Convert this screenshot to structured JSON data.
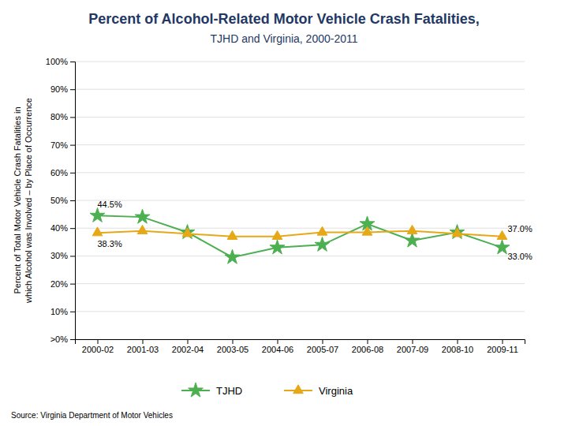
{
  "chart_data": {
    "type": "line",
    "title": "Percent of Alcohol-Related Motor Vehicle Crash Fatalities,",
    "subtitle": "TJHD and Virginia, 2000-2011",
    "y_label": "Percent of Total Motor Vehicle Crash Fatalities in\nwhich Alcohol was Involved – by Place of Occurrence",
    "source": "Source: Virginia Department of Motor Vehicles",
    "categories": [
      "2000-02",
      "2001-03",
      "2002-04",
      "2003-05",
      "2004-06",
      "2005-07",
      "2006-08",
      "2007-09",
      "2008-10",
      "2009-11"
    ],
    "series": [
      {
        "name": "TJHD",
        "color": "#4CAF50",
        "marker": "star",
        "values": [
          44.5,
          44.0,
          38.5,
          29.5,
          33.0,
          34.0,
          41.5,
          35.5,
          38.5,
          33.0
        ]
      },
      {
        "name": "Virginia",
        "color": "#E6A817",
        "marker": "triangle",
        "values": [
          38.3,
          39.0,
          38.0,
          37.0,
          37.0,
          38.5,
          38.5,
          39.0,
          38.0,
          37.0
        ]
      }
    ],
    "ylim": [
      0,
      100
    ],
    "yticks": [
      {
        "value": 0,
        "label": ">0%"
      },
      {
        "value": 10,
        "label": "10%"
      },
      {
        "value": 20,
        "label": "20%"
      },
      {
        "value": 30,
        "label": "30%"
      },
      {
        "value": 40,
        "label": "40%"
      },
      {
        "value": 50,
        "label": "50%"
      },
      {
        "value": 60,
        "label": "60%"
      },
      {
        "value": 70,
        "label": "70%"
      },
      {
        "value": 80,
        "label": "80%"
      },
      {
        "value": 90,
        "label": "90%"
      },
      {
        "value": 100,
        "label": "100%"
      }
    ],
    "annotations": [
      {
        "text": "44.5%",
        "x": "2000-02",
        "y": 44.5
      },
      {
        "text": "38.3%",
        "x": "2000-02",
        "y": 38.3
      },
      {
        "text": "33.0%",
        "x": "2009-11",
        "y": 33.0
      },
      {
        "text": "37.0%",
        "x": "2009-11",
        "y": 37.0
      }
    ],
    "grid": true,
    "legend": "bottom"
  }
}
